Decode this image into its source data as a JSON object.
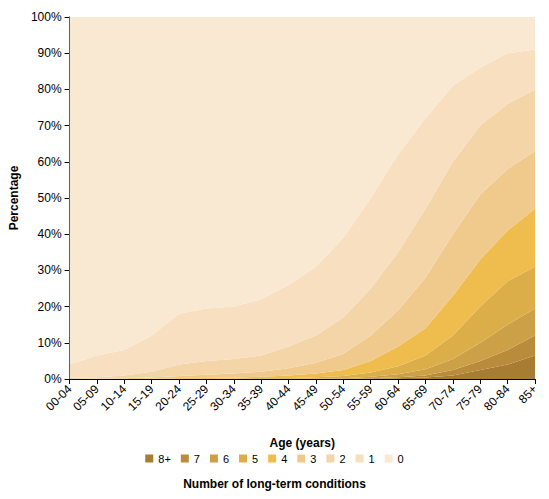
{
  "chart_data": {
    "type": "area",
    "stacked": true,
    "grid": false,
    "legend": "bottom",
    "legend_title": "Number of long-term conditions",
    "x_label": "Age (years)",
    "y_label": "Percentage",
    "categories": [
      "00-04",
      "05-09",
      "10-14",
      "15-19",
      "20-24",
      "25-29",
      "30-34",
      "35-39",
      "40-44",
      "45-49",
      "50-54",
      "55-59",
      "60-64",
      "65-69",
      "70-74",
      "75-79",
      "80-84",
      "85+"
    ],
    "ylim": [
      0,
      100
    ],
    "yticks": [
      {
        "value": 0,
        "label": "0%"
      },
      {
        "value": 10,
        "label": "10%"
      },
      {
        "value": 20,
        "label": "20%"
      },
      {
        "value": 30,
        "label": "30%"
      },
      {
        "value": 40,
        "label": "40%"
      },
      {
        "value": 50,
        "label": "50%"
      },
      {
        "value": 60,
        "label": "60%"
      },
      {
        "value": 70,
        "label": "70%"
      },
      {
        "value": 80,
        "label": "80%"
      },
      {
        "value": 90,
        "label": "90%"
      },
      {
        "value": 100,
        "label": "100%"
      }
    ],
    "series": [
      {
        "name": "8+",
        "color": "#a67d32",
        "values": [
          0,
          0,
          0,
          0,
          0,
          0,
          0,
          0,
          0,
          0,
          0,
          0.1,
          0.2,
          0.4,
          1,
          2.5,
          4,
          6.5
        ]
      },
      {
        "name": "7",
        "color": "#b98c3b",
        "values": [
          0,
          0,
          0,
          0,
          0,
          0,
          0,
          0,
          0,
          0,
          0.1,
          0.1,
          0.3,
          0.6,
          1.5,
          2.5,
          4,
          5.5
        ]
      },
      {
        "name": "6",
        "color": "#cca046",
        "values": [
          0,
          0,
          0,
          0,
          0,
          0,
          0,
          0,
          0.1,
          0.1,
          0.1,
          0.4,
          0.8,
          1.7,
          3,
          5,
          7,
          7.5
        ]
      },
      {
        "name": "5",
        "color": "#dbae4a",
        "values": [
          0,
          0,
          0,
          0,
          0,
          0.1,
          0.1,
          0.2,
          0.2,
          0.4,
          0.6,
          1.2,
          2.2,
          3.8,
          6.5,
          10,
          12,
          11.5
        ]
      },
      {
        "name": "4",
        "color": "#eebd4e",
        "values": [
          0,
          0,
          0,
          0.1,
          0.2,
          0.2,
          0.3,
          0.4,
          0.7,
          1,
          1.7,
          3.2,
          5.5,
          7.5,
          11,
          13,
          14,
          16
        ]
      },
      {
        "name": "3",
        "color": "#f0ca8c",
        "values": [
          0,
          0.1,
          0.2,
          0.3,
          0.6,
          0.9,
          1.1,
          1.4,
          2,
          3,
          4.5,
          7,
          10,
          14,
          17,
          18,
          17,
          16
        ]
      },
      {
        "name": "2",
        "color": "#f4d5a8",
        "values": [
          0.3,
          0.4,
          0.8,
          1.6,
          3.2,
          3.8,
          4,
          4.5,
          6,
          7.5,
          10,
          13,
          16,
          19,
          20,
          19,
          18,
          17
        ]
      },
      {
        "name": "1",
        "color": "#f7dfc0",
        "values": [
          3.7,
          6,
          7,
          10,
          14,
          14.5,
          14.5,
          15.5,
          17,
          19,
          22,
          25,
          27,
          25,
          21,
          16,
          14,
          11
        ]
      },
      {
        "name": "0",
        "color": "#f9e8d2",
        "values": [
          96,
          93.5,
          92,
          88,
          82,
          80.5,
          80,
          78,
          74,
          69,
          61,
          50,
          38,
          28,
          19,
          14,
          10,
          9
        ]
      }
    ]
  }
}
